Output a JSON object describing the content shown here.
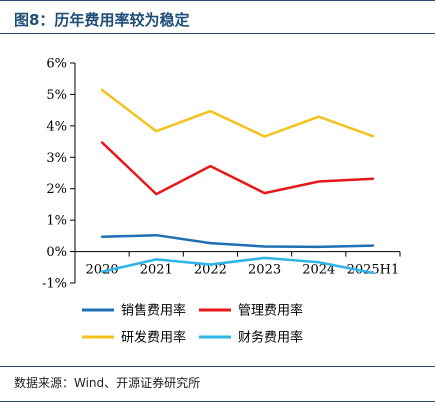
{
  "figure": {
    "title": "图8：历年费用率较为稳定",
    "source": "数据来源：Wind、开源证券研究所"
  },
  "chart_data": {
    "type": "line",
    "categories": [
      "2020",
      "2021",
      "2022",
      "2023",
      "2024",
      "2025H1"
    ],
    "ylim": [
      -1,
      6
    ],
    "yticks": [
      -1,
      0,
      1,
      2,
      3,
      4,
      5,
      6
    ],
    "ytick_labels": [
      "-1%",
      "0%",
      "1%",
      "2%",
      "3%",
      "4%",
      "5%",
      "6%"
    ],
    "unit": "%",
    "legend_position": "bottom",
    "grid": false,
    "series": [
      {
        "name": "销售费用率",
        "color": "#1f6fb3",
        "values": [
          0.47,
          0.52,
          0.27,
          0.16,
          0.15,
          0.19
        ]
      },
      {
        "name": "管理费用率",
        "color": "#e8191b",
        "values": [
          3.47,
          1.83,
          2.72,
          1.86,
          2.23,
          2.32
        ]
      },
      {
        "name": "研发费用率",
        "color": "#f5c21b",
        "values": [
          5.14,
          3.83,
          4.47,
          3.66,
          4.29,
          3.67
        ]
      },
      {
        "name": "财务费用率",
        "color": "#2fb4e8",
        "values": [
          -0.64,
          -0.25,
          -0.41,
          -0.2,
          -0.34,
          -0.68
        ]
      }
    ]
  }
}
